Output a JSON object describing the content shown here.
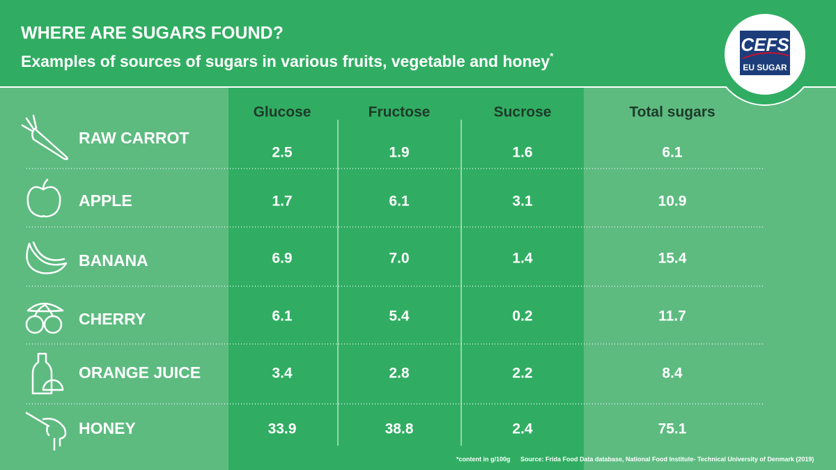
{
  "header": {
    "title": "WHERE ARE SUGARS FOUND?",
    "subtitle": "Examples of sources of sugars in various fruits, vegetable and honey",
    "subtitle_mark": "*"
  },
  "logo": {
    "name": "CEFS",
    "tagline": "EU SUGAR"
  },
  "table": {
    "columns": [
      "Glucose",
      "Fructose",
      "Sucrose",
      "Total sugars"
    ],
    "rows": [
      [
        "RAW CARROT",
        "2.5",
        "1.9",
        "1.6",
        "6.1"
      ],
      [
        "APPLE",
        "1.7",
        "6.1",
        "3.1",
        "10.9"
      ],
      [
        "BANANA",
        "6.9",
        "7.0",
        "1.4",
        "15.4"
      ],
      [
        "CHERRY",
        "6.1",
        "5.4",
        "0.2",
        "11.7"
      ],
      [
        "ORANGE JUICE",
        "3.4",
        "2.8",
        "2.2",
        "8.4"
      ],
      [
        "HONEY",
        "33.9",
        "38.8",
        "2.4",
        "75.1"
      ]
    ]
  },
  "footer": {
    "note": "*content in g/100g",
    "source": "Source: Frida Food Data database, National Food Institute- Technical University of Denmark (2019)"
  }
}
